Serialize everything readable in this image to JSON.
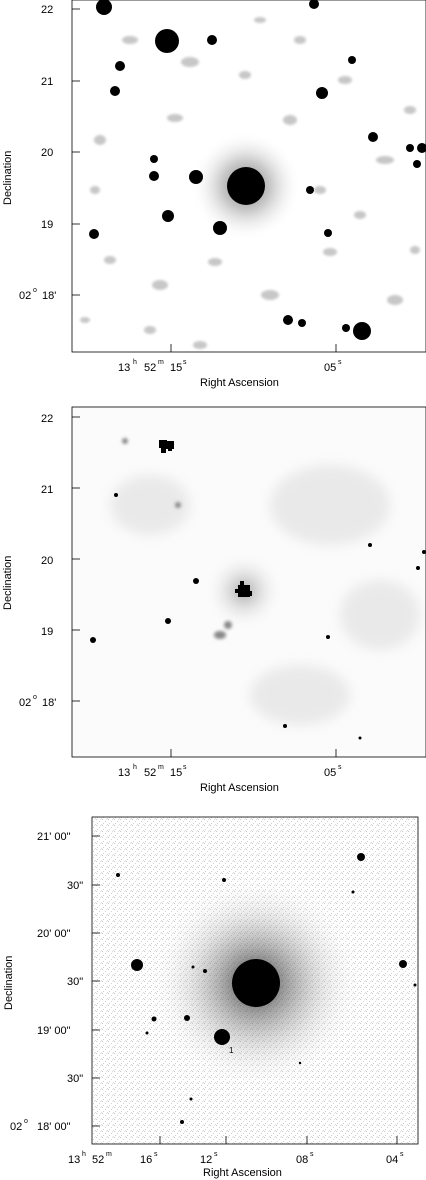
{
  "panels": [
    {
      "id": "top",
      "xlabel": "Right Ascension",
      "ylabel": "Declination",
      "ytick_labels": [
        "22",
        "21",
        "20",
        "19",
        "02",
        "18'",
        "o"
      ],
      "xtick_labels": [
        "13",
        "h",
        "52",
        "m",
        "15",
        "s",
        "05",
        "s"
      ]
    },
    {
      "id": "middle",
      "xlabel": "Right Ascension",
      "ylabel": "Declination",
      "ytick_labels": [
        "22",
        "21",
        "20",
        "19",
        "02",
        "18'",
        "o"
      ],
      "xtick_labels": [
        "13",
        "h",
        "52",
        "m",
        "15",
        "s",
        "05",
        "s"
      ]
    },
    {
      "id": "bottom",
      "xlabel": "Right Ascension",
      "ylabel": "Declination",
      "ytick_labels": [
        "21' 00\"",
        "30\"",
        "20' 00\"",
        "30\"",
        "19' 00\"",
        "30\"",
        "02",
        "18' 00\"",
        "o"
      ],
      "xtick_labels": [
        "13",
        "h",
        "52",
        "m",
        "16",
        "s",
        "12",
        "s",
        "08",
        "s",
        "04",
        "s"
      ],
      "marker": "1"
    }
  ]
}
